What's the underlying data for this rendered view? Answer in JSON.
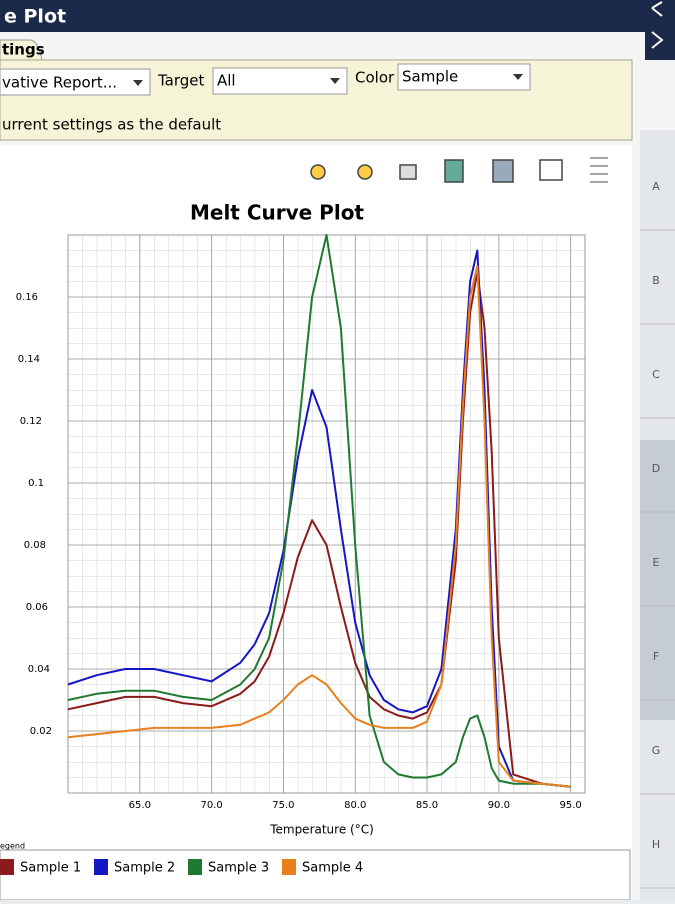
{
  "header": {
    "title": "e Plot",
    "tab": "tings"
  },
  "settings": {
    "report": "vative Report...",
    "target_label": "Target",
    "target_value": "All",
    "color_label": "Color",
    "color_value": "Sample",
    "default_text": "urrent settings as the default"
  },
  "legend_caption": "egend",
  "side_rows": [
    "A",
    "B",
    "C",
    "D",
    "E",
    "F",
    "G",
    "H"
  ],
  "chart_data": {
    "type": "line",
    "title": "Melt Curve Plot",
    "x_label": "Temperature (°C)",
    "x": [
      60,
      62,
      64,
      66,
      68,
      70,
      72,
      73,
      74,
      75,
      76,
      77,
      78,
      79,
      80,
      81,
      82,
      83,
      84,
      85,
      86,
      87,
      87.5,
      88,
      88.5,
      89,
      89.5,
      90,
      91,
      93,
      95
    ],
    "series": [
      {
        "name": "Sample 1",
        "color": "#8b1a1a",
        "values": [
          0.027,
          0.029,
          0.031,
          0.031,
          0.029,
          0.028,
          0.032,
          0.036,
          0.044,
          0.058,
          0.076,
          0.088,
          0.08,
          0.06,
          0.042,
          0.031,
          0.027,
          0.025,
          0.024,
          0.026,
          0.035,
          0.075,
          0.12,
          0.155,
          0.168,
          0.15,
          0.11,
          0.05,
          0.006,
          0.003,
          0.002
        ]
      },
      {
        "name": "Sample 2",
        "color": "#1515c8",
        "values": [
          0.035,
          0.038,
          0.04,
          0.04,
          0.038,
          0.036,
          0.042,
          0.048,
          0.058,
          0.078,
          0.108,
          0.13,
          0.118,
          0.085,
          0.055,
          0.038,
          0.03,
          0.027,
          0.026,
          0.028,
          0.04,
          0.085,
          0.13,
          0.165,
          0.175,
          0.13,
          0.06,
          0.015,
          0.004,
          0.003,
          0.002
        ]
      },
      {
        "name": "Sample 3",
        "color": "#1e7a2e",
        "values": [
          0.03,
          0.032,
          0.033,
          0.033,
          0.031,
          0.03,
          0.035,
          0.04,
          0.05,
          0.075,
          0.115,
          0.16,
          0.18,
          0.15,
          0.08,
          0.025,
          0.01,
          0.006,
          0.005,
          0.005,
          0.006,
          0.01,
          0.018,
          0.024,
          0.025,
          0.018,
          0.008,
          0.004,
          0.003,
          0.003,
          0.002
        ]
      },
      {
        "name": "Sample 4",
        "color": "#e8801e",
        "values": [
          0.018,
          0.019,
          0.02,
          0.021,
          0.021,
          0.021,
          0.022,
          0.024,
          0.026,
          0.03,
          0.035,
          0.038,
          0.035,
          0.029,
          0.024,
          0.022,
          0.021,
          0.021,
          0.021,
          0.023,
          0.035,
          0.08,
          0.125,
          0.16,
          0.17,
          0.12,
          0.05,
          0.01,
          0.004,
          0.003,
          0.002
        ]
      }
    ],
    "xlim": [
      60,
      96
    ],
    "xticks": [
      {
        "value": 65,
        "label": "65.0"
      },
      {
        "value": 70,
        "label": "70.0"
      },
      {
        "value": 75,
        "label": "75.0"
      },
      {
        "value": 80,
        "label": "80.0"
      },
      {
        "value": 85,
        "label": "85.0"
      },
      {
        "value": 90,
        "label": "90.0"
      },
      {
        "value": 95,
        "label": "95.0"
      }
    ],
    "ylim": [
      0,
      0.18
    ],
    "yticks": [
      0.02,
      0.04,
      0.06,
      0.08,
      0.1,
      0.12,
      0.14,
      0.16
    ],
    "grid": true,
    "legend": "bottom"
  }
}
